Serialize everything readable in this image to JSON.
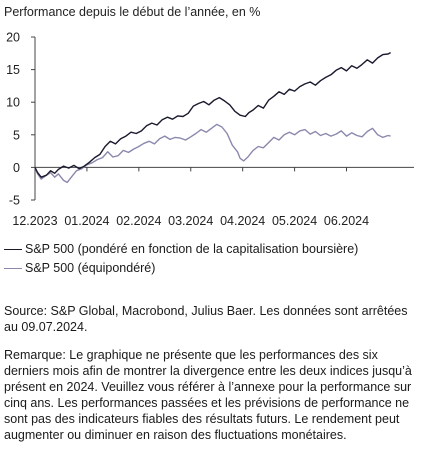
{
  "chart_data": {
    "type": "line",
    "title": "Performance depuis le début de l’année, en %",
    "xlabel": "",
    "ylabel": "",
    "x_ticks": [
      "12.2023",
      "01.2024",
      "02.2024",
      "03.2024",
      "04.2024",
      "05.2024",
      "06.2024"
    ],
    "x_range": [
      0,
      7.3
    ],
    "y_ticks": [
      -5,
      0,
      5,
      10,
      15,
      20
    ],
    "ylim": [
      -5,
      20
    ],
    "grid": false,
    "legend_placement": "bottom",
    "series": [
      {
        "name": "S&P 500 (pondéré en fonction de la capitalisation boursière)",
        "color": "#1a1a2e",
        "points": [
          [
            0.0,
            0.0
          ],
          [
            0.05,
            -0.8
          ],
          [
            0.12,
            -1.5
          ],
          [
            0.22,
            -1.2
          ],
          [
            0.3,
            -0.5
          ],
          [
            0.38,
            -0.9
          ],
          [
            0.45,
            -0.3
          ],
          [
            0.55,
            0.2
          ],
          [
            0.65,
            -0.1
          ],
          [
            0.75,
            0.3
          ],
          [
            0.85,
            -0.2
          ],
          [
            0.95,
            0.2
          ],
          [
            1.05,
            0.8
          ],
          [
            1.15,
            1.5
          ],
          [
            1.25,
            2.0
          ],
          [
            1.35,
            3.2
          ],
          [
            1.45,
            4.0
          ],
          [
            1.55,
            3.6
          ],
          [
            1.65,
            4.4
          ],
          [
            1.75,
            4.8
          ],
          [
            1.85,
            5.4
          ],
          [
            1.95,
            5.2
          ],
          [
            2.05,
            5.6
          ],
          [
            2.15,
            6.4
          ],
          [
            2.25,
            6.8
          ],
          [
            2.35,
            6.5
          ],
          [
            2.45,
            7.3
          ],
          [
            2.55,
            7.7
          ],
          [
            2.65,
            7.4
          ],
          [
            2.75,
            7.9
          ],
          [
            2.85,
            7.8
          ],
          [
            2.95,
            8.3
          ],
          [
            3.05,
            9.4
          ],
          [
            3.15,
            9.8
          ],
          [
            3.25,
            10.1
          ],
          [
            3.35,
            9.6
          ],
          [
            3.45,
            10.3
          ],
          [
            3.55,
            10.7
          ],
          [
            3.65,
            10.2
          ],
          [
            3.75,
            9.6
          ],
          [
            3.85,
            8.6
          ],
          [
            3.95,
            8.0
          ],
          [
            4.05,
            7.8
          ],
          [
            4.12,
            8.4
          ],
          [
            4.2,
            8.8
          ],
          [
            4.3,
            9.5
          ],
          [
            4.4,
            9.1
          ],
          [
            4.5,
            10.3
          ],
          [
            4.6,
            10.9
          ],
          [
            4.7,
            11.6
          ],
          [
            4.8,
            11.2
          ],
          [
            4.9,
            12.0
          ],
          [
            5.0,
            11.7
          ],
          [
            5.1,
            12.4
          ],
          [
            5.2,
            12.8
          ],
          [
            5.3,
            13.1
          ],
          [
            5.4,
            12.6
          ],
          [
            5.5,
            13.3
          ],
          [
            5.6,
            13.8
          ],
          [
            5.7,
            14.2
          ],
          [
            5.8,
            14.9
          ],
          [
            5.9,
            15.3
          ],
          [
            6.0,
            14.8
          ],
          [
            6.1,
            15.6
          ],
          [
            6.2,
            15.2
          ],
          [
            6.3,
            15.8
          ],
          [
            6.4,
            16.5
          ],
          [
            6.5,
            16.0
          ],
          [
            6.6,
            16.8
          ],
          [
            6.7,
            17.3
          ],
          [
            6.8,
            17.4
          ],
          [
            6.85,
            17.6
          ]
        ]
      },
      {
        "name": "S&P 500 (équipondéré)",
        "color": "#8a88ac",
        "points": [
          [
            0.0,
            0.0
          ],
          [
            0.05,
            -1.0
          ],
          [
            0.12,
            -1.8
          ],
          [
            0.2,
            -1.3
          ],
          [
            0.3,
            -0.8
          ],
          [
            0.38,
            -1.5
          ],
          [
            0.45,
            -1.0
          ],
          [
            0.55,
            -2.0
          ],
          [
            0.62,
            -2.3
          ],
          [
            0.7,
            -1.5
          ],
          [
            0.8,
            -0.5
          ],
          [
            0.9,
            -0.2
          ],
          [
            1.0,
            0.4
          ],
          [
            1.1,
            0.7
          ],
          [
            1.2,
            1.2
          ],
          [
            1.3,
            1.5
          ],
          [
            1.4,
            2.4
          ],
          [
            1.5,
            1.6
          ],
          [
            1.6,
            1.8
          ],
          [
            1.7,
            2.6
          ],
          [
            1.8,
            2.3
          ],
          [
            1.9,
            2.8
          ],
          [
            2.0,
            3.2
          ],
          [
            2.1,
            3.7
          ],
          [
            2.2,
            4.0
          ],
          [
            2.3,
            3.6
          ],
          [
            2.4,
            4.4
          ],
          [
            2.5,
            4.8
          ],
          [
            2.6,
            4.3
          ],
          [
            2.7,
            4.6
          ],
          [
            2.8,
            4.5
          ],
          [
            2.9,
            4.2
          ],
          [
            3.0,
            4.7
          ],
          [
            3.1,
            5.2
          ],
          [
            3.2,
            5.8
          ],
          [
            3.3,
            5.4
          ],
          [
            3.4,
            6.0
          ],
          [
            3.5,
            6.6
          ],
          [
            3.6,
            6.2
          ],
          [
            3.7,
            5.2
          ],
          [
            3.8,
            3.4
          ],
          [
            3.9,
            2.4
          ],
          [
            3.95,
            1.4
          ],
          [
            4.02,
            1.0
          ],
          [
            4.1,
            1.6
          ],
          [
            4.2,
            2.6
          ],
          [
            4.3,
            3.2
          ],
          [
            4.4,
            3.0
          ],
          [
            4.5,
            3.8
          ],
          [
            4.6,
            4.6
          ],
          [
            4.7,
            4.2
          ],
          [
            4.8,
            5.0
          ],
          [
            4.9,
            5.4
          ],
          [
            5.0,
            5.0
          ],
          [
            5.1,
            5.6
          ],
          [
            5.2,
            5.8
          ],
          [
            5.3,
            5.1
          ],
          [
            5.4,
            5.5
          ],
          [
            5.5,
            4.9
          ],
          [
            5.6,
            5.2
          ],
          [
            5.7,
            4.8
          ],
          [
            5.8,
            5.1
          ],
          [
            5.9,
            5.6
          ],
          [
            6.0,
            4.8
          ],
          [
            6.1,
            5.3
          ],
          [
            6.2,
            4.9
          ],
          [
            6.3,
            4.7
          ],
          [
            6.4,
            5.5
          ],
          [
            6.5,
            6.0
          ],
          [
            6.6,
            5.0
          ],
          [
            6.7,
            4.6
          ],
          [
            6.8,
            4.9
          ],
          [
            6.85,
            4.8
          ]
        ]
      }
    ]
  },
  "source_text": "Source: S&P Global, Macrobond, Julius Baer. Les données sont arrêtées au 09.07.2024.",
  "note_text": "Remarque: Le graphique ne présente que les performances des six derniers mois afin de montrer la divergence entre les deux indices jusqu’à présent en 2024. Veuillez vous référer à l’annexe pour la performance sur cinq ans. Les performances passées et les prévisions de performance ne sont pas des indicateurs fiables des résultats futurs. Le rendement peut augmenter ou diminuer en raison des fluctuations monétaires."
}
